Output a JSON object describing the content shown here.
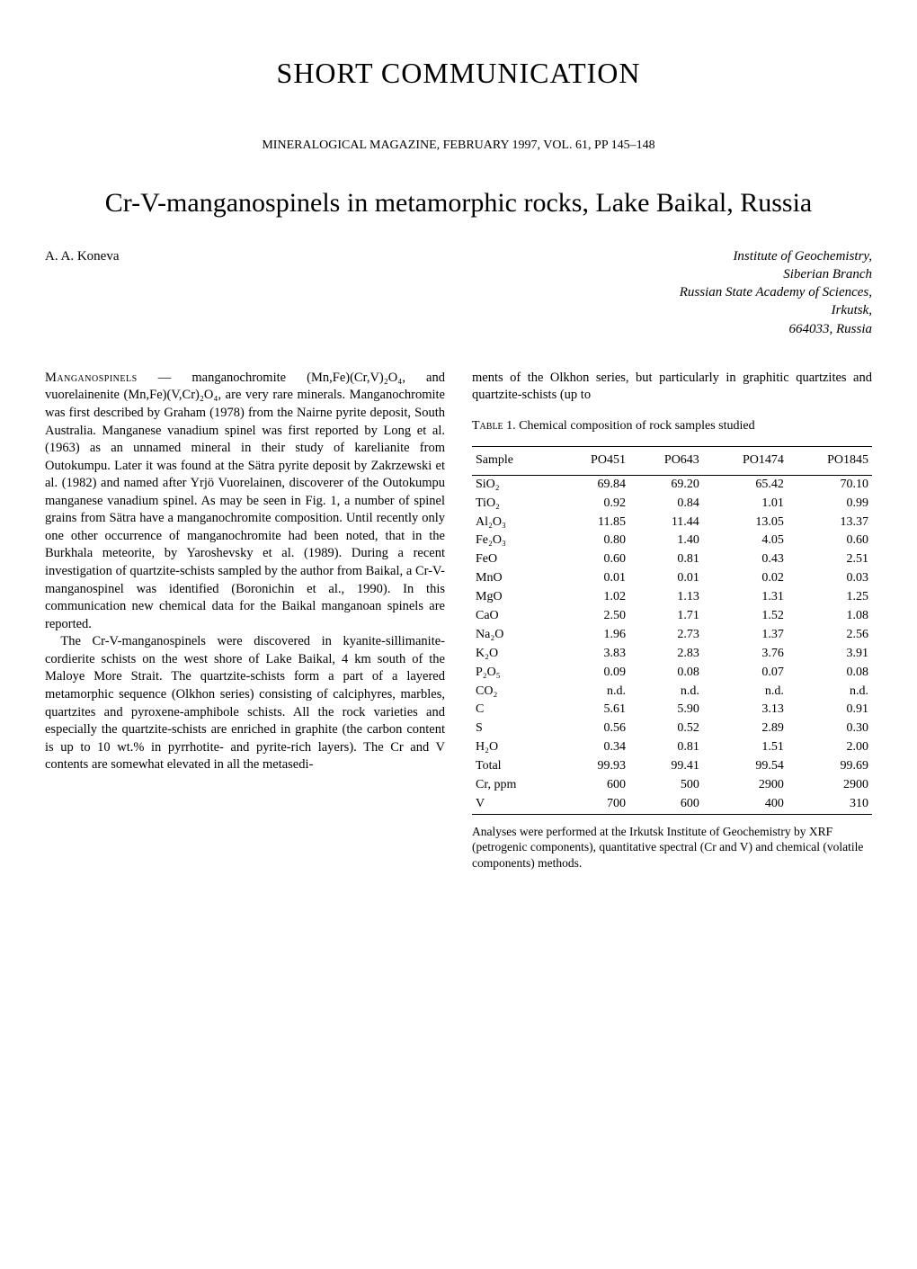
{
  "header": {
    "section": "SHORT COMMUNICATION",
    "journal_line": "MINERALOGICAL MAGAZINE, FEBRUARY 1997, VOL. 61, PP 145–148",
    "title": "Cr-V-manganospinels in metamorphic rocks, Lake Baikal, Russia",
    "author": "A. A. Koneva",
    "affiliation_lines": [
      "Institute of Geochemistry,",
      "Siberian Branch",
      "Russian State Academy of Sciences,",
      "Irkutsk,",
      "664033, Russia"
    ]
  },
  "body": {
    "para1_lead": "Manganospinels",
    "para1_rest": " — manganochromite (Mn,Fe)(Cr,V)₂O₄, and vuorelainenite (Mn,Fe)(V,Cr)₂O₄, are very rare minerals. Manganochromite was first described by Graham (1978) from the Nairne pyrite deposit, South Australia. Manganese vanadium spinel was first reported by Long et al. (1963) as an unnamed mineral in their study of karelianite from Outokumpu. Later it was found at the Sätra pyrite deposit by Zakrzewski et al. (1982) and named after Yrjö Vuorelainen, discoverer of the Outokumpu manganese vanadium spinel. As may be seen in Fig. 1, a number of spinel grains from Sätra have a manganochromite composition. Until recently only one other occurrence of manganochromite had been noted, that in the Burkhala meteorite, by Yaroshevsky et al. (1989). During a recent investigation of quartzite-schists sampled by the author from Baikal, a Cr-V-manganospinel was identified (Boronichin et al., 1990). In this communication new chemical data for the Baikal manganoan spinels are reported.",
    "para2": "The Cr-V-manganospinels were discovered in kyanite-sillimanite-cordierite schists on the west shore of Lake Baikal, 4 km south of the Maloye More Strait. The quartzite-schists form a part of a layered metamorphic sequence (Olkhon series) consisting of calciphyres, marbles, quartzites and pyroxene-amphibole schists. All the rock varieties and especially the quartzite-schists are enriched in graphite (the carbon content is up to 10 wt.% in pyrrhotite- and pyrite-rich layers). The Cr and V contents are somewhat elevated in all the metasedi-",
    "right_col_continuation": "ments of the Olkhon series, but particularly in graphitic quartzites and quartzite-schists (up to"
  },
  "table1": {
    "caption_lead": "Table",
    "caption_rest": " 1. Chemical composition of rock samples studied",
    "columns": [
      "Sample",
      "PO451",
      "PO643",
      "PO1474",
      "PO1845"
    ],
    "rows_main": [
      [
        "SiO₂",
        "69.84",
        "69.20",
        "65.42",
        "70.10"
      ],
      [
        "TiO₂",
        "0.92",
        "0.84",
        "1.01",
        "0.99"
      ],
      [
        "Al₂O₃",
        "11.85",
        "11.44",
        "13.05",
        "13.37"
      ],
      [
        "Fe₂O₃",
        "0.80",
        "1.40",
        "4.05",
        "0.60"
      ],
      [
        "FeO",
        "0.60",
        "0.81",
        "0.43",
        "2.51"
      ],
      [
        "MnO",
        "0.01",
        "0.01",
        "0.02",
        "0.03"
      ],
      [
        "MgO",
        "1.02",
        "1.13",
        "1.31",
        "1.25"
      ],
      [
        "CaO",
        "2.50",
        "1.71",
        "1.52",
        "1.08"
      ],
      [
        "Na₂O",
        "1.96",
        "2.73",
        "1.37",
        "2.56"
      ],
      [
        "K₂O",
        "3.83",
        "2.83",
        "3.76",
        "3.91"
      ],
      [
        "P₂O₅",
        "0.09",
        "0.08",
        "0.07",
        "0.08"
      ],
      [
        "CO₂",
        "n.d.",
        "n.d.",
        "n.d.",
        "n.d."
      ],
      [
        "C",
        "5.61",
        "5.90",
        "3.13",
        "0.91"
      ],
      [
        "S",
        "0.56",
        "0.52",
        "2.89",
        "0.30"
      ],
      [
        "H₂O",
        "0.34",
        "0.81",
        "1.51",
        "2.00"
      ]
    ],
    "row_total": [
      "Total",
      "99.93",
      "99.41",
      "99.54",
      "99.69"
    ],
    "rows_trace": [
      [
        "Cr, ppm",
        "600",
        "500",
        "2900",
        "2900"
      ],
      [
        "V",
        "700",
        "600",
        "400",
        "310"
      ]
    ],
    "footnote": "Analyses were performed at the Irkutsk Institute of Geochemistry by XRF (petrogenic components), quantitative spectral (Cr and V) and chemical (volatile components) methods."
  }
}
